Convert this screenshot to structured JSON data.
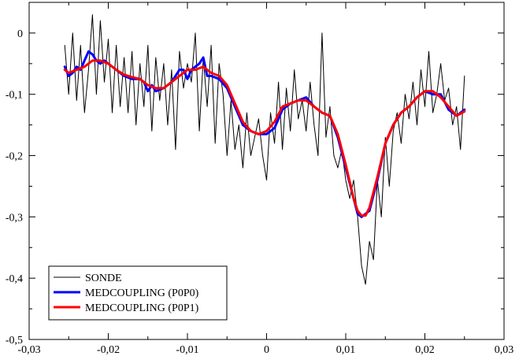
{
  "chart_data": {
    "type": "line",
    "title": "",
    "xlabel": "",
    "ylabel": "",
    "xlim": [
      -0.03,
      0.03
    ],
    "ylim": [
      -0.5,
      0.05
    ],
    "grid": false,
    "legend_position": "bottom-left",
    "xticks": [
      {
        "value": -0.03,
        "label": "-0,03"
      },
      {
        "value": -0.02,
        "label": "-0,02"
      },
      {
        "value": -0.01,
        "label": "-0,01"
      },
      {
        "value": 0,
        "label": "0"
      },
      {
        "value": 0.01,
        "label": "0,01"
      },
      {
        "value": 0.02,
        "label": "0,02"
      },
      {
        "value": 0.03,
        "label": "0,03"
      }
    ],
    "yticks": [
      {
        "value": 0,
        "label": "0"
      },
      {
        "value": -0.1,
        "label": "-0,1"
      },
      {
        "value": -0.2,
        "label": "-0,2"
      },
      {
        "value": -0.3,
        "label": "-0,3"
      },
      {
        "value": -0.4,
        "label": "-0,4"
      },
      {
        "value": -0.5,
        "label": "-0,5"
      }
    ],
    "series": [
      {
        "name": "SONDE",
        "color": "#000000",
        "x": [
          -0.0255,
          -0.025,
          -0.0245,
          -0.024,
          -0.0235,
          -0.023,
          -0.0225,
          -0.022,
          -0.0215,
          -0.021,
          -0.0205,
          -0.02,
          -0.0195,
          -0.019,
          -0.0185,
          -0.018,
          -0.0175,
          -0.017,
          -0.0165,
          -0.016,
          -0.0155,
          -0.015,
          -0.0145,
          -0.014,
          -0.0135,
          -0.013,
          -0.0125,
          -0.012,
          -0.0115,
          -0.011,
          -0.0105,
          -0.01,
          -0.0095,
          -0.009,
          -0.0085,
          -0.008,
          -0.0075,
          -0.007,
          -0.0065,
          -0.006,
          -0.0055,
          -0.005,
          -0.0045,
          -0.004,
          -0.0035,
          -0.003,
          -0.0025,
          -0.002,
          -0.0015,
          -0.001,
          -0.0005,
          0,
          0.0005,
          0.001,
          0.0015,
          0.002,
          0.0025,
          0.003,
          0.0035,
          0.004,
          0.0045,
          0.005,
          0.0055,
          0.006,
          0.0065,
          0.007,
          0.0075,
          0.008,
          0.0085,
          0.009,
          0.0095,
          0.01,
          0.0105,
          0.011,
          0.0115,
          0.012,
          0.0125,
          0.013,
          0.0135,
          0.014,
          0.0145,
          0.015,
          0.0155,
          0.016,
          0.0165,
          0.017,
          0.0175,
          0.018,
          0.0185,
          0.019,
          0.0195,
          0.02,
          0.0205,
          0.021,
          0.0215,
          0.022,
          0.0225,
          0.023,
          0.0235,
          0.024,
          0.0245,
          0.025
        ],
        "y": [
          -0.02,
          -0.1,
          0.0,
          -0.11,
          -0.02,
          -0.13,
          -0.06,
          0.03,
          -0.1,
          0.02,
          -0.08,
          -0.01,
          -0.13,
          -0.02,
          -0.12,
          -0.04,
          -0.13,
          -0.03,
          -0.15,
          -0.05,
          -0.12,
          -0.02,
          -0.16,
          -0.04,
          -0.11,
          -0.05,
          -0.15,
          -0.06,
          -0.19,
          -0.03,
          -0.09,
          -0.05,
          -0.08,
          0.0,
          -0.16,
          -0.04,
          -0.12,
          -0.02,
          -0.18,
          -0.05,
          -0.1,
          -0.2,
          -0.11,
          -0.19,
          -0.15,
          -0.22,
          -0.13,
          -0.2,
          -0.17,
          -0.14,
          -0.2,
          -0.24,
          -0.13,
          -0.18,
          -0.08,
          -0.19,
          -0.09,
          -0.16,
          -0.06,
          -0.14,
          -0.11,
          -0.16,
          -0.08,
          -0.15,
          -0.2,
          0.0,
          -0.17,
          -0.12,
          -0.2,
          -0.22,
          -0.19,
          -0.24,
          -0.27,
          -0.24,
          -0.3,
          -0.38,
          -0.41,
          -0.34,
          -0.37,
          -0.24,
          -0.3,
          -0.17,
          -0.25,
          -0.16,
          -0.13,
          -0.18,
          -0.1,
          -0.14,
          -0.08,
          -0.15,
          -0.06,
          -0.12,
          -0.03,
          -0.13,
          -0.1,
          -0.05,
          -0.11,
          -0.09,
          -0.15,
          -0.12,
          -0.19,
          -0.07
        ]
      },
      {
        "name": "MEDCOUPLING (P0P0)",
        "color": "#0000ff",
        "x": [
          -0.0255,
          -0.025,
          -0.0245,
          -0.024,
          -0.0235,
          -0.023,
          -0.0225,
          -0.022,
          -0.0215,
          -0.021,
          -0.0205,
          -0.02,
          -0.0195,
          -0.019,
          -0.018,
          -0.017,
          -0.016,
          -0.0155,
          -0.015,
          -0.0145,
          -0.014,
          -0.013,
          -0.012,
          -0.011,
          -0.0105,
          -0.01,
          -0.0095,
          -0.009,
          -0.0085,
          -0.008,
          -0.0075,
          -0.007,
          -0.006,
          -0.005,
          -0.004,
          -0.003,
          -0.002,
          -0.001,
          0,
          0.001,
          0.002,
          0.003,
          0.004,
          0.005,
          0.006,
          0.007,
          0.008,
          0.009,
          0.01,
          0.011,
          0.0115,
          0.012,
          0.0125,
          0.013,
          0.014,
          0.015,
          0.016,
          0.017,
          0.018,
          0.019,
          0.02,
          0.021,
          0.022,
          0.023,
          0.024,
          0.025
        ],
        "y": [
          -0.055,
          -0.07,
          -0.065,
          -0.055,
          -0.06,
          -0.045,
          -0.03,
          -0.035,
          -0.045,
          -0.05,
          -0.045,
          -0.05,
          -0.055,
          -0.06,
          -0.07,
          -0.075,
          -0.075,
          -0.08,
          -0.095,
          -0.085,
          -0.095,
          -0.09,
          -0.08,
          -0.06,
          -0.06,
          -0.075,
          -0.06,
          -0.055,
          -0.05,
          -0.04,
          -0.07,
          -0.07,
          -0.075,
          -0.09,
          -0.12,
          -0.15,
          -0.16,
          -0.165,
          -0.165,
          -0.155,
          -0.125,
          -0.115,
          -0.11,
          -0.105,
          -0.12,
          -0.13,
          -0.135,
          -0.17,
          -0.22,
          -0.27,
          -0.295,
          -0.3,
          -0.295,
          -0.29,
          -0.24,
          -0.18,
          -0.15,
          -0.13,
          -0.12,
          -0.105,
          -0.095,
          -0.1,
          -0.1,
          -0.125,
          -0.135,
          -0.125
        ]
      },
      {
        "name": "MEDCOUPLING (P0P1)",
        "color": "#ff0000",
        "x": [
          -0.0255,
          -0.025,
          -0.024,
          -0.023,
          -0.022,
          -0.021,
          -0.02,
          -0.019,
          -0.018,
          -0.017,
          -0.016,
          -0.015,
          -0.014,
          -0.013,
          -0.012,
          -0.011,
          -0.01,
          -0.009,
          -0.008,
          -0.007,
          -0.006,
          -0.005,
          -0.004,
          -0.003,
          -0.002,
          -0.001,
          0,
          0.001,
          0.002,
          0.003,
          0.004,
          0.005,
          0.006,
          0.007,
          0.008,
          0.009,
          0.01,
          0.011,
          0.0115,
          0.012,
          0.0125,
          0.013,
          0.014,
          0.015,
          0.016,
          0.017,
          0.018,
          0.019,
          0.02,
          0.021,
          0.022,
          0.023,
          0.024,
          0.025
        ],
        "y": [
          -0.06,
          -0.065,
          -0.06,
          -0.055,
          -0.045,
          -0.045,
          -0.05,
          -0.06,
          -0.068,
          -0.072,
          -0.075,
          -0.085,
          -0.09,
          -0.09,
          -0.08,
          -0.07,
          -0.06,
          -0.06,
          -0.055,
          -0.065,
          -0.07,
          -0.085,
          -0.115,
          -0.145,
          -0.16,
          -0.165,
          -0.16,
          -0.145,
          -0.12,
          -0.115,
          -0.11,
          -0.11,
          -0.12,
          -0.13,
          -0.135,
          -0.165,
          -0.215,
          -0.27,
          -0.29,
          -0.298,
          -0.298,
          -0.285,
          -0.235,
          -0.18,
          -0.15,
          -0.13,
          -0.12,
          -0.105,
          -0.095,
          -0.095,
          -0.105,
          -0.12,
          -0.135,
          -0.128
        ]
      }
    ]
  }
}
